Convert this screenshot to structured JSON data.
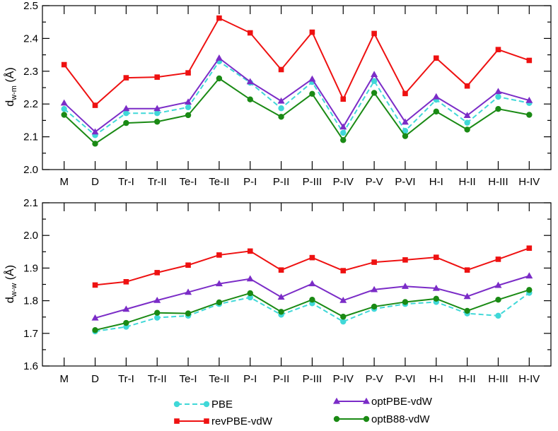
{
  "chart_data": [
    {
      "type": "line",
      "ylabel_main": "d",
      "ylabel_sub": "w-m",
      "ylabel_unit": "(Å)",
      "ylim": [
        2.0,
        2.5
      ],
      "yticks": [
        "2.0",
        "2.1",
        "2.2",
        "2.3",
        "2.4",
        "2.5"
      ],
      "categories": [
        "M",
        "D",
        "Tr-I",
        "Tr-II",
        "Te-I",
        "Te-II",
        "P-I",
        "P-II",
        "P-III",
        "P-IV",
        "P-V",
        "P-VI",
        "H-I",
        "H-II",
        "H-III",
        "H-IV"
      ],
      "series": [
        {
          "name": "PBE",
          "values": [
            2.185,
            2.105,
            2.172,
            2.172,
            2.19,
            2.33,
            2.265,
            2.187,
            2.267,
            2.112,
            2.27,
            2.118,
            2.213,
            2.143,
            2.222,
            2.203
          ]
        },
        {
          "name": "revPBE-vdW",
          "values": [
            2.32,
            2.196,
            2.28,
            2.282,
            2.295,
            2.462,
            2.417,
            2.305,
            2.419,
            2.215,
            2.415,
            2.232,
            2.34,
            2.255,
            2.366,
            2.333
          ]
        },
        {
          "name": "optPBE-vdW",
          "values": [
            2.203,
            2.115,
            2.186,
            2.186,
            2.206,
            2.34,
            2.268,
            2.209,
            2.276,
            2.13,
            2.29,
            2.145,
            2.222,
            2.165,
            2.238,
            2.211
          ]
        },
        {
          "name": "optB88-vdW",
          "values": [
            2.167,
            2.079,
            2.142,
            2.146,
            2.166,
            2.278,
            2.214,
            2.161,
            2.231,
            2.09,
            2.234,
            2.102,
            2.177,
            2.122,
            2.185,
            2.167
          ]
        }
      ]
    },
    {
      "type": "line",
      "ylabel_main": "d",
      "ylabel_sub": "w-w",
      "ylabel_unit": "(Å)",
      "ylim": [
        1.6,
        2.1
      ],
      "yticks": [
        "1.6",
        "1.7",
        "1.8",
        "1.9",
        "2.0",
        "2.1"
      ],
      "categories": [
        "M",
        "D",
        "Tr-I",
        "Tr-II",
        "Te-I",
        "Te-II",
        "P-I",
        "P-II",
        "P-III",
        "P-IV",
        "P-V",
        "P-VI",
        "H-I",
        "H-II",
        "H-III",
        "H-IV"
      ],
      "series": [
        {
          "name": "PBE",
          "values": [
            null,
            1.706,
            1.72,
            1.748,
            1.754,
            1.79,
            1.81,
            1.757,
            1.792,
            1.736,
            1.775,
            1.79,
            1.796,
            1.761,
            1.754,
            1.824
          ]
        },
        {
          "name": "revPBE-vdW",
          "values": [
            null,
            1.848,
            1.858,
            1.886,
            1.909,
            1.94,
            1.952,
            1.894,
            1.932,
            1.892,
            1.918,
            1.925,
            1.933,
            1.894,
            1.927,
            1.961
          ]
        },
        {
          "name": "optPBE-vdW",
          "values": [
            null,
            1.747,
            1.774,
            1.801,
            1.826,
            1.852,
            1.867,
            1.811,
            1.852,
            1.801,
            1.834,
            1.844,
            1.838,
            1.813,
            1.847,
            1.876
          ]
        },
        {
          "name": "optB88-vdW",
          "values": [
            null,
            1.71,
            1.732,
            1.763,
            1.761,
            1.795,
            1.823,
            1.766,
            1.803,
            1.751,
            1.782,
            1.796,
            1.806,
            1.769,
            1.803,
            1.833
          ]
        }
      ]
    }
  ],
  "legend": [
    {
      "name": "PBE",
      "color": "#40d8d8",
      "marker": "circle",
      "dash": true
    },
    {
      "name": "revPBE-vdW",
      "color": "#ee1111",
      "marker": "square",
      "dash": false
    },
    {
      "name": "optPBE-vdW",
      "color": "#7b2cc7",
      "marker": "triangle",
      "dash": false
    },
    {
      "name": "optB88-vdW",
      "color": "#1a8a14",
      "marker": "circle",
      "dash": false
    }
  ]
}
